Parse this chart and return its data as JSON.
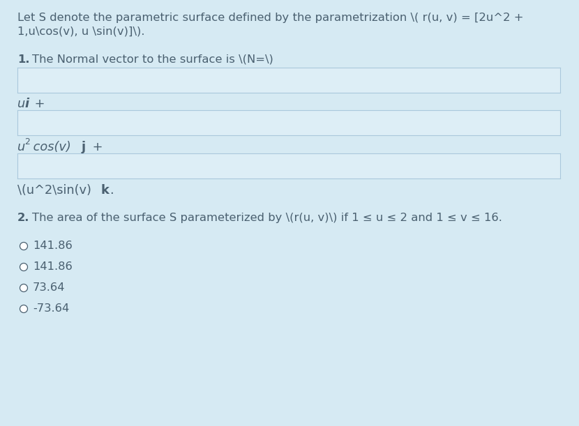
{
  "bg_color": "#d6eaf3",
  "box_bg": "#ddeef6",
  "box_border": "#aac8dc",
  "text_color": "#4a6070",
  "fig_w": 8.3,
  "fig_h": 6.11,
  "dpi": 100,
  "title_line1": "Let S denote the parametric surface defined by the parametrization \\( r(u, v) = [2u^2 +",
  "title_line2": "1,u\\cos(v), u \\sin(v)]\\).",
  "q1_intro": "The Normal vector to the surface is \\(N=\\)",
  "q2_intro": "The area of the surface S parameterized by \\(r(u, v)\\) if 1 ≤ u ≤ 2 and 1 ≤ v ≤ 16.",
  "options": [
    "141.86",
    "141.86",
    "73.64",
    "-73.64"
  ],
  "font_size": 11.8
}
